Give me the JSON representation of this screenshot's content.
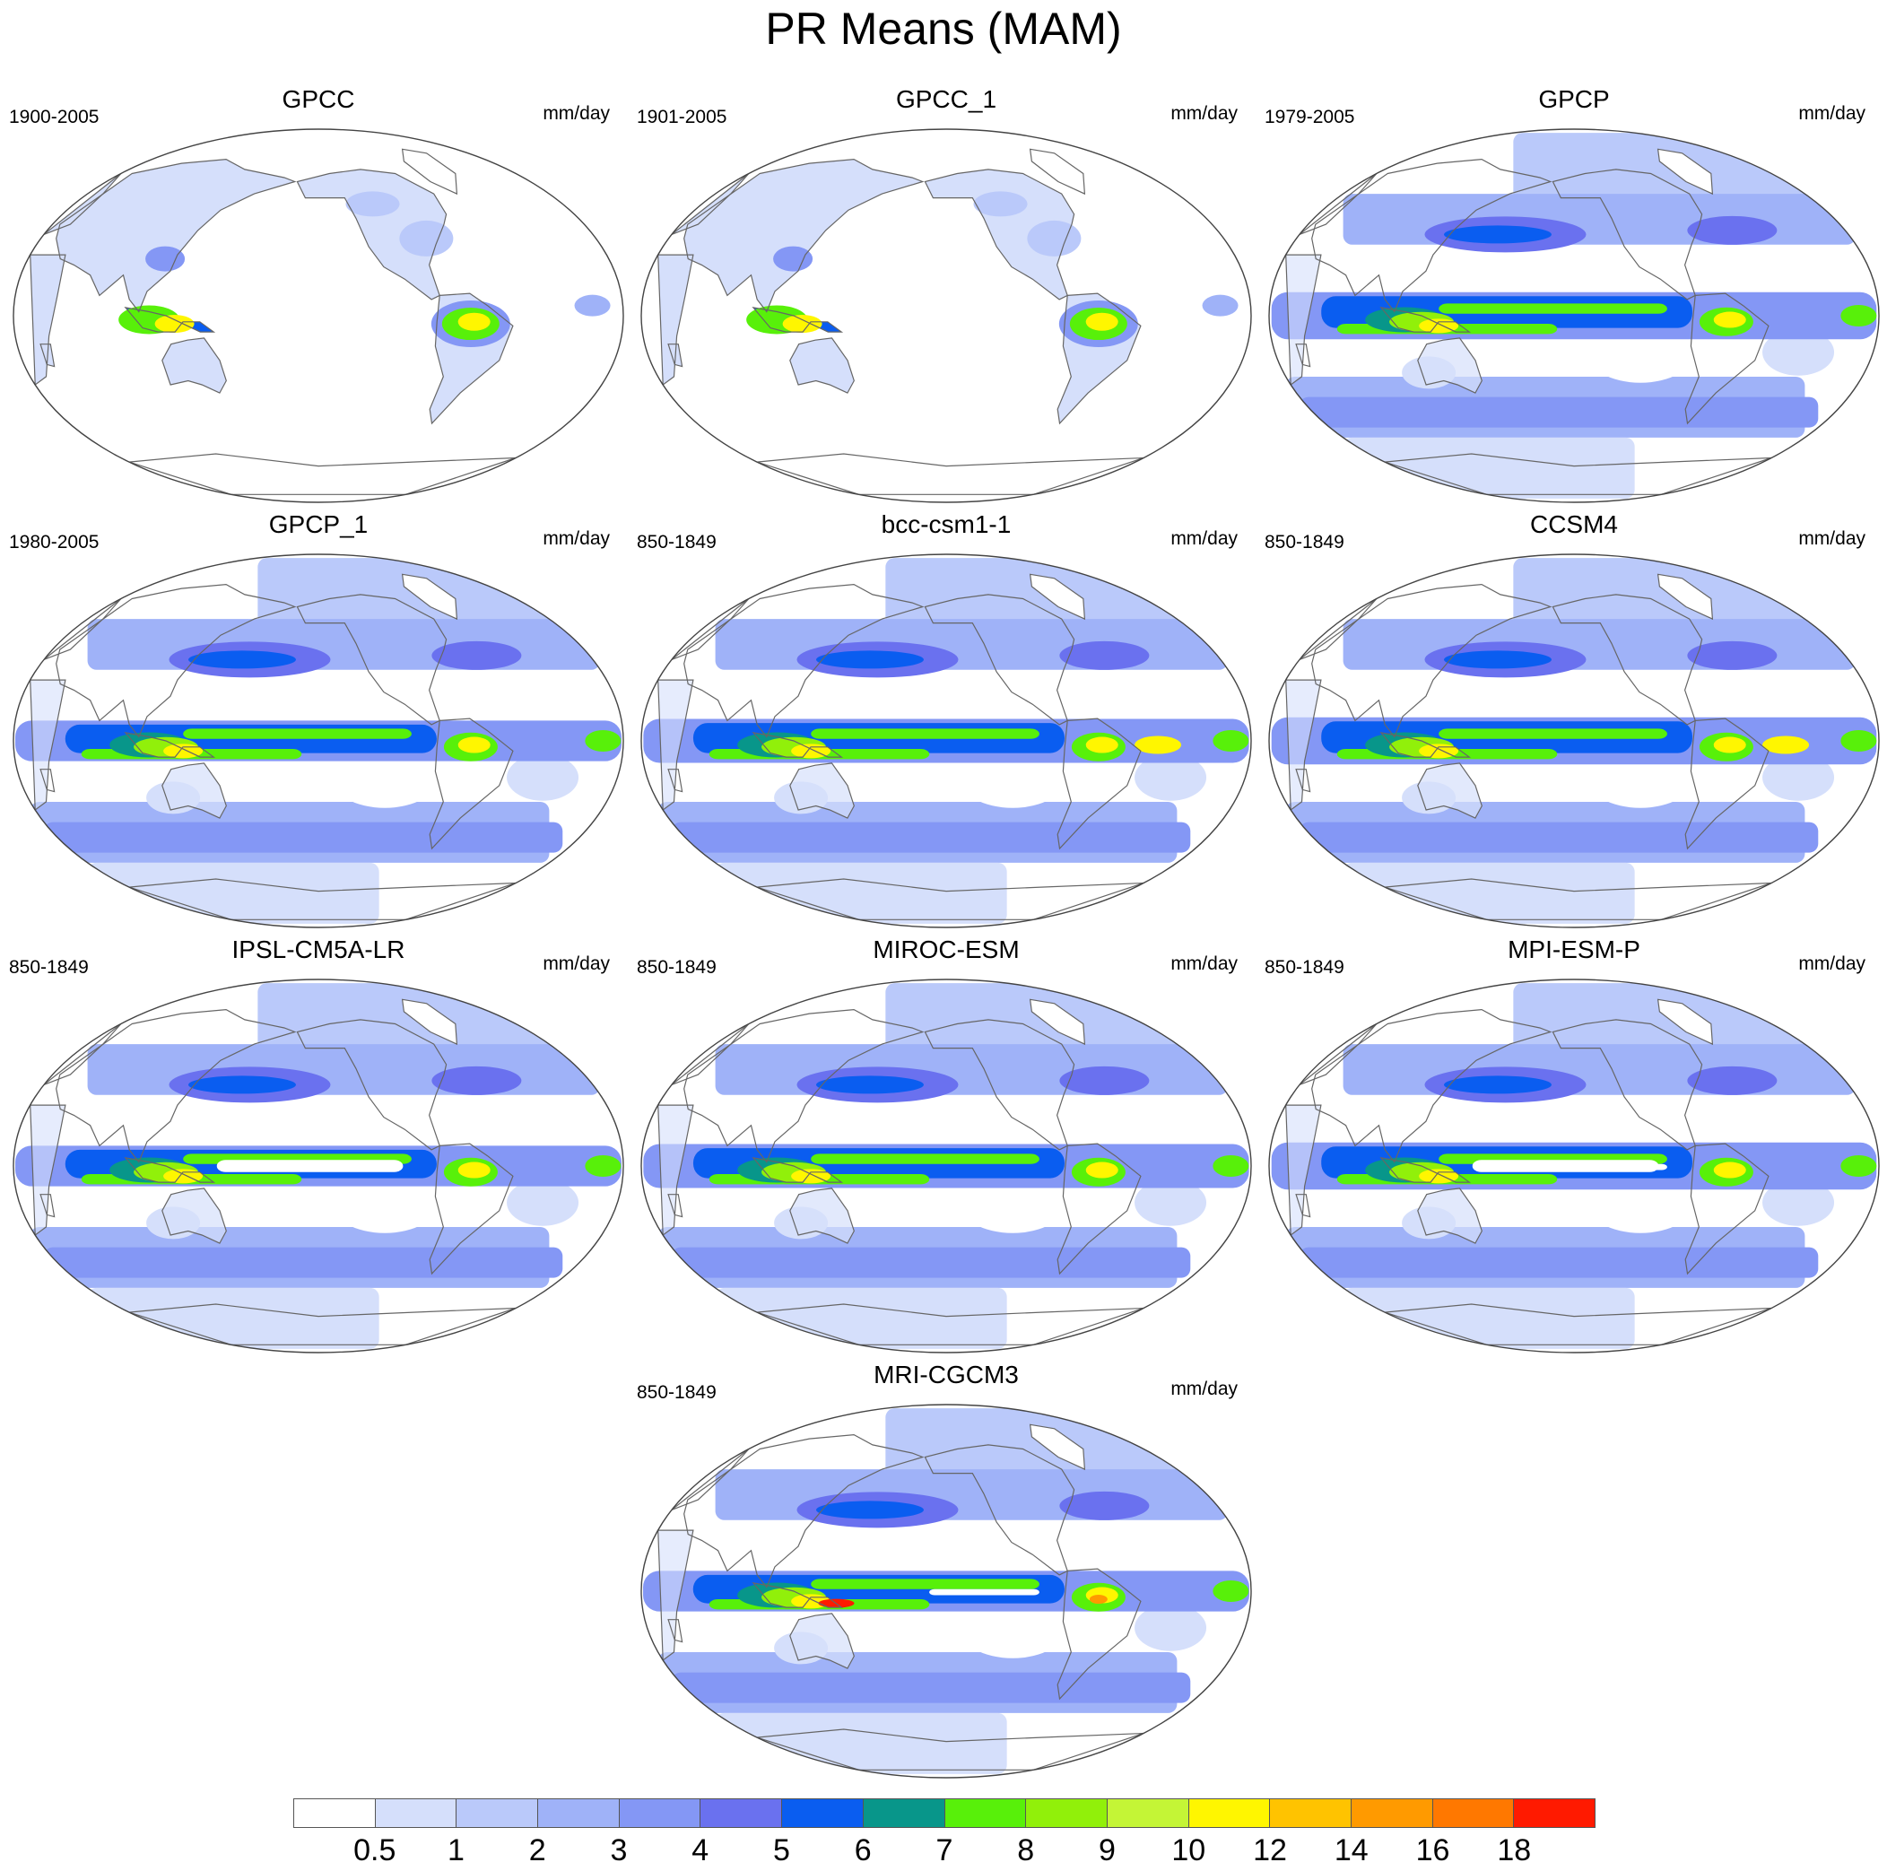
{
  "title": "PR Means (MAM)",
  "unit": "mm/day",
  "panels": [
    {
      "name": "GPCC",
      "period": "1900-2005",
      "dataset": "observed-land"
    },
    {
      "name": "GPCC_1",
      "period": "1901-2005",
      "dataset": "observed-land"
    },
    {
      "name": "GPCP",
      "period": "1979-2005",
      "dataset": "observed-global"
    },
    {
      "name": "GPCP_1",
      "period": "1980-2005",
      "dataset": "observed-global"
    },
    {
      "name": "bcc-csm1-1",
      "period": "850-1849",
      "dataset": "model"
    },
    {
      "name": "CCSM4",
      "period": "850-1849",
      "dataset": "model"
    },
    {
      "name": "IPSL-CM5A-LR",
      "period": "850-1849",
      "dataset": "model"
    },
    {
      "name": "MIROC-ESM",
      "period": "850-1849",
      "dataset": "model"
    },
    {
      "name": "MPI-ESM-P",
      "period": "850-1849",
      "dataset": "model"
    },
    {
      "name": "MRI-CGCM3",
      "period": "850-1849",
      "dataset": "model"
    }
  ],
  "colorbar": {
    "labels": [
      "0.5",
      "1",
      "2",
      "3",
      "4",
      "5",
      "6",
      "7",
      "8",
      "9",
      "10",
      "12",
      "14",
      "16",
      "18"
    ],
    "colors": [
      "#ffffff",
      "#d5dffb",
      "#bac9fa",
      "#9fb2f8",
      "#8497f5",
      "#6a71ef",
      "#0a5df0",
      "#08968a",
      "#58f00a",
      "#91f00a",
      "#c4f536",
      "#fff600",
      "#ffc300",
      "#ff9a00",
      "#ff7800",
      "#ff1a00"
    ]
  },
  "projection": "Robinson, centered on the Pacific"
}
